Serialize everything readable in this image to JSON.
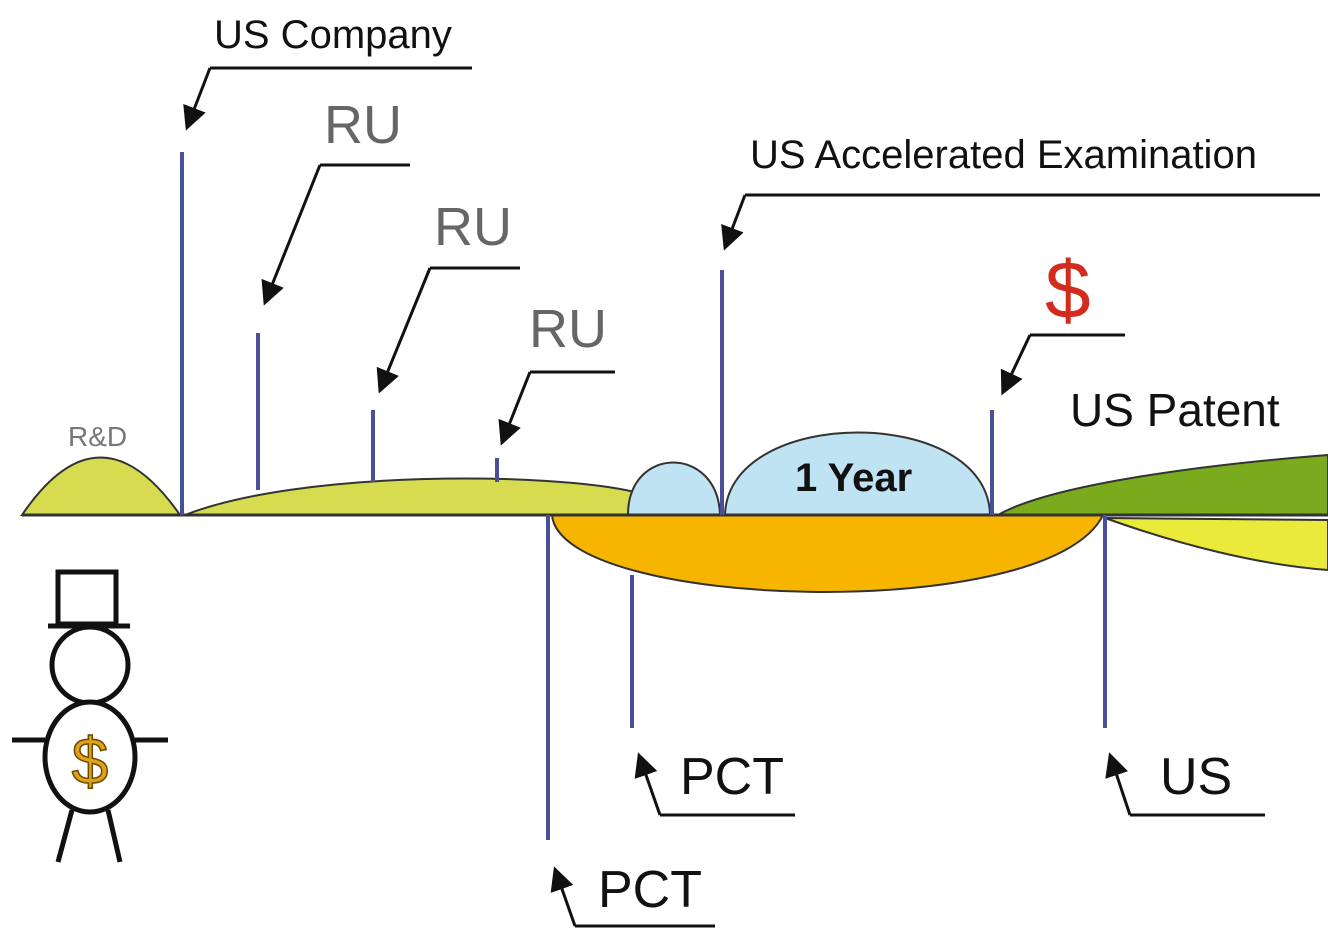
{
  "labels": {
    "us_company": "US Company",
    "ru": [
      "RU",
      "RU",
      "RU"
    ],
    "us_accelerated": "US Accelerated Examination",
    "money": "$",
    "us_patent": "US Patent",
    "rnd": "R&D",
    "one_year": "1 Year",
    "pct": [
      "PCT",
      "PCT"
    ],
    "us": "US",
    "investor_symbol": "$"
  }
}
